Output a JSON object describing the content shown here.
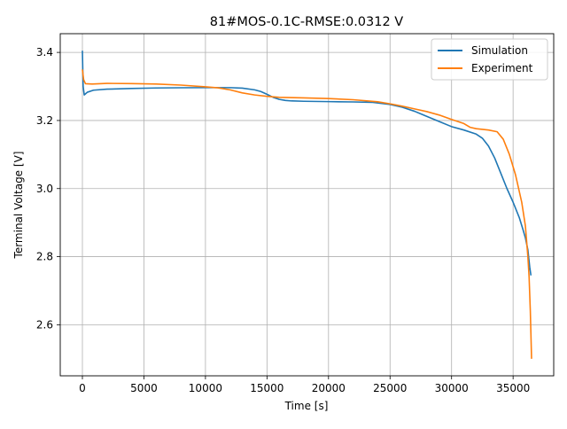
{
  "chart_data": {
    "type": "line",
    "title": "81#MOS-0.1C-RMSE:0.0312 V",
    "xlabel": "Time [s]",
    "ylabel": "Terminal Voltage [V]",
    "xlim": [
      -1800,
      38300
    ],
    "ylim": [
      2.45,
      3.455
    ],
    "xticks": [
      0,
      5000,
      10000,
      15000,
      20000,
      25000,
      30000,
      35000
    ],
    "xtick_labels": [
      "0",
      "5000",
      "10000",
      "15000",
      "20000",
      "25000",
      "30000",
      "35000"
    ],
    "yticks": [
      2.6,
      2.8,
      3.0,
      3.2,
      3.4
    ],
    "ytick_labels": [
      "2.6",
      "2.8",
      "3.0",
      "3.2",
      "3.4"
    ],
    "grid": true,
    "legend_position": "top-right",
    "series": [
      {
        "name": "Simulation",
        "color": "#1f77b4",
        "points": [
          [
            0,
            3.405
          ],
          [
            60,
            3.3
          ],
          [
            150,
            3.275
          ],
          [
            400,
            3.283
          ],
          [
            900,
            3.289
          ],
          [
            2000,
            3.292
          ],
          [
            4000,
            3.294
          ],
          [
            6000,
            3.2955
          ],
          [
            8000,
            3.2962
          ],
          [
            10000,
            3.2965
          ],
          [
            12000,
            3.2965
          ],
          [
            13000,
            3.295
          ],
          [
            14000,
            3.29
          ],
          [
            14500,
            3.285
          ],
          [
            15000,
            3.277
          ],
          [
            15500,
            3.268
          ],
          [
            16000,
            3.262
          ],
          [
            16500,
            3.259
          ],
          [
            17000,
            3.2575
          ],
          [
            18000,
            3.2565
          ],
          [
            20000,
            3.2555
          ],
          [
            22000,
            3.2545
          ],
          [
            23500,
            3.2535
          ],
          [
            25000,
            3.247
          ],
          [
            26000,
            3.239
          ],
          [
            27000,
            3.227
          ],
          [
            28000,
            3.212
          ],
          [
            29000,
            3.197
          ],
          [
            30000,
            3.182
          ],
          [
            31000,
            3.172
          ],
          [
            32000,
            3.16
          ],
          [
            32500,
            3.148
          ],
          [
            33000,
            3.125
          ],
          [
            33500,
            3.09
          ],
          [
            34000,
            3.045
          ],
          [
            34500,
            3.0
          ],
          [
            35000,
            2.96
          ],
          [
            35500,
            2.915
          ],
          [
            35800,
            2.88
          ],
          [
            36000,
            2.855
          ],
          [
            36200,
            2.82
          ],
          [
            36350,
            2.77
          ],
          [
            36450,
            2.745
          ]
        ]
      },
      {
        "name": "Experiment",
        "color": "#ff7f0e",
        "points": [
          [
            0,
            3.35
          ],
          [
            100,
            3.32
          ],
          [
            250,
            3.308
          ],
          [
            800,
            3.307
          ],
          [
            2000,
            3.309
          ],
          [
            4000,
            3.3085
          ],
          [
            6000,
            3.307
          ],
          [
            8000,
            3.304
          ],
          [
            10000,
            3.299
          ],
          [
            11000,
            3.296
          ],
          [
            12000,
            3.29
          ],
          [
            13000,
            3.281
          ],
          [
            14000,
            3.275
          ],
          [
            15000,
            3.271
          ],
          [
            16000,
            3.268
          ],
          [
            18000,
            3.2665
          ],
          [
            20000,
            3.2645
          ],
          [
            22000,
            3.261
          ],
          [
            24000,
            3.255
          ],
          [
            25000,
            3.249
          ],
          [
            26000,
            3.242
          ],
          [
            27000,
            3.234
          ],
          [
            28000,
            3.226
          ],
          [
            29000,
            3.216
          ],
          [
            30000,
            3.203
          ],
          [
            31000,
            3.191
          ],
          [
            31500,
            3.18
          ],
          [
            32000,
            3.176
          ],
          [
            33000,
            3.172
          ],
          [
            33700,
            3.167
          ],
          [
            34200,
            3.145
          ],
          [
            34700,
            3.1
          ],
          [
            35200,
            3.04
          ],
          [
            35700,
            2.96
          ],
          [
            36000,
            2.89
          ],
          [
            36200,
            2.8
          ],
          [
            36300,
            2.74
          ],
          [
            36400,
            2.64
          ],
          [
            36450,
            2.57
          ],
          [
            36500,
            2.5
          ]
        ]
      }
    ]
  }
}
